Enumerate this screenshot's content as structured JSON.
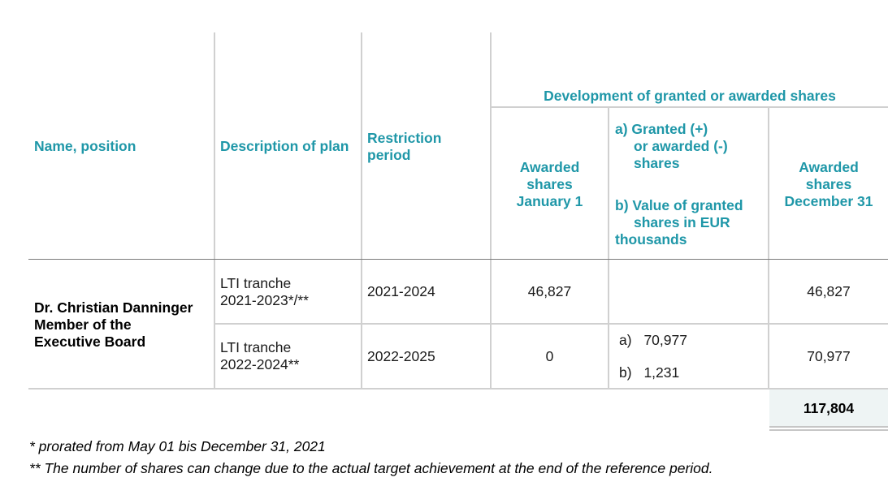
{
  "table": {
    "headers": {
      "name_position": "Name, position",
      "description": "Description of plan",
      "restriction_line1": "Restriction",
      "restriction_line2": "period",
      "group_header": "Development of granted or awarded shares",
      "awarded_jan_line1": "Awarded",
      "awarded_jan_line2": "shares",
      "awarded_jan_line3": "January 1",
      "granted_a_line1": "a) Granted (+)",
      "granted_a_line2": "or awarded (-)",
      "granted_a_line3": "shares",
      "granted_b_line1": "b) Value of granted",
      "granted_b_line2": "shares in EUR",
      "granted_b_line3": "thousands",
      "awarded_dec_line1": "Awarded",
      "awarded_dec_line2": "shares",
      "awarded_dec_line3": "December 31"
    },
    "person": {
      "line1": "Dr. Christian Danninger",
      "line2": "Member of the",
      "line3": "Executive Board"
    },
    "rows": [
      {
        "plan_line1": "LTI tranche",
        "plan_line2": "2021-2023*/**",
        "period": "2021-2024",
        "jan1": "46,827",
        "granted_a": "",
        "granted_b": "",
        "dec31": "46,827"
      },
      {
        "plan_line1": "LTI tranche",
        "plan_line2": "2022-2024**",
        "period": "2022-2025",
        "jan1": "0",
        "granted_a_prefix": "a)",
        "granted_a": "70,977",
        "granted_b_prefix": "b)",
        "granted_b": "1,231",
        "dec31": "70,977"
      }
    ],
    "total": "117,804"
  },
  "footnotes": [
    "* prorated from May 01 bis December 31, 2021",
    "** The number of shares can change due to the actual target achievement at the end of the reference period."
  ],
  "colors": {
    "header_teal": "#1f97a8",
    "grid_line": "#d0d0d0",
    "total_bg": "#eef4f4"
  }
}
